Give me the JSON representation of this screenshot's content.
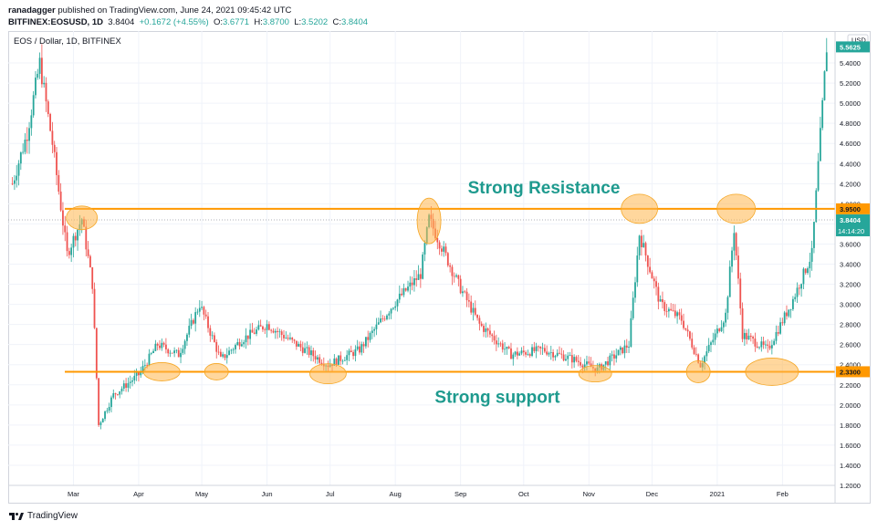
{
  "header": {
    "author": "ranadagger",
    "published_text": "published on TradingView.com, June 24, 2021 09:45:42 UTC",
    "symbol_line": "BITFINEX:EOSUSD, 1D",
    "last": "3.8404",
    "change": "+0.1672 (+4.55%)",
    "o_label": "O:",
    "o_value": "3.6771",
    "h_label": "H:",
    "h_value": "3.8700",
    "l_label": "L:",
    "l_value": "3.5202",
    "c_label": "C:",
    "c_value": "3.8404"
  },
  "chart_data": {
    "type": "candlestick",
    "title": "EOS / Dollar, 1D, BITFINEX",
    "currency": "USD",
    "x_ticks": [
      "Mar",
      "Apr",
      "May",
      "Jun",
      "Jul",
      "Aug",
      "Sep",
      "Oct",
      "Nov",
      "Dec",
      "2021",
      "Feb"
    ],
    "y_ticks": [
      "1.2000",
      "1.4000",
      "1.6000",
      "1.8000",
      "2.0000",
      "2.2000",
      "2.4000",
      "2.6000",
      "2.8000",
      "3.0000",
      "3.2000",
      "3.4000",
      "3.6000",
      "3.8000",
      "4.0000",
      "4.2000",
      "4.4000",
      "4.6000",
      "4.8000",
      "5.0000",
      "5.2000",
      "5.4000"
    ],
    "ylim": [
      1.2,
      5.6
    ],
    "close_path": [
      [
        "2020-02-01",
        4.2
      ],
      [
        "2020-02-08",
        4.7
      ],
      [
        "2020-02-14",
        5.4
      ],
      [
        "2020-02-20",
        4.6
      ],
      [
        "2020-02-27",
        3.5
      ],
      [
        "2020-03-05",
        3.85
      ],
      [
        "2020-03-10",
        3.2
      ],
      [
        "2020-03-13",
        1.8
      ],
      [
        "2020-03-20",
        2.1
      ],
      [
        "2020-04-01",
        2.3
      ],
      [
        "2020-04-10",
        2.6
      ],
      [
        "2020-04-20",
        2.5
      ],
      [
        "2020-04-30",
        3.0
      ],
      [
        "2020-05-10",
        2.45
      ],
      [
        "2020-05-20",
        2.65
      ],
      [
        "2020-06-01",
        2.8
      ],
      [
        "2020-06-15",
        2.6
      ],
      [
        "2020-06-30",
        2.4
      ],
      [
        "2020-07-15",
        2.55
      ],
      [
        "2020-07-31",
        3.0
      ],
      [
        "2020-08-13",
        3.3
      ],
      [
        "2020-08-17",
        3.85
      ],
      [
        "2020-08-31",
        3.2
      ],
      [
        "2020-09-10",
        2.8
      ],
      [
        "2020-09-25",
        2.5
      ],
      [
        "2020-10-10",
        2.55
      ],
      [
        "2020-10-25",
        2.45
      ],
      [
        "2020-11-05",
        2.35
      ],
      [
        "2020-11-20",
        2.6
      ],
      [
        "2020-11-25",
        3.7
      ],
      [
        "2020-12-05",
        3.0
      ],
      [
        "2020-12-15",
        2.85
      ],
      [
        "2020-12-24",
        2.4
      ],
      [
        "2021-01-05",
        2.9
      ],
      [
        "2021-01-09",
        3.75
      ],
      [
        "2021-01-13",
        2.7
      ],
      [
        "2021-01-25",
        2.55
      ],
      [
        "2021-02-05",
        3.0
      ],
      [
        "2021-02-15",
        3.5
      ],
      [
        "2021-02-22",
        5.56
      ]
    ],
    "levels": [
      {
        "label": "Strong Resistance",
        "value": 3.95,
        "price_tag": "3.9500",
        "color": "#ff9800"
      },
      {
        "label": "Strong support",
        "value": 2.33,
        "price_tag": "2.3300",
        "color": "#ff9800"
      }
    ],
    "last_price_tag": "5.5625",
    "last_price_value": 5.56,
    "ohlc_tag": "3.8404",
    "countdown_tag": "14:14:20",
    "ohlc_tag_value": 3.84,
    "highlighted_touches": [
      [
        "2020-03-05",
        3.86
      ],
      [
        "2020-04-12",
        2.33
      ],
      [
        "2020-05-08",
        2.33
      ],
      [
        "2020-06-30",
        2.31
      ],
      [
        "2020-08-17",
        3.83
      ],
      [
        "2020-11-04",
        2.31
      ],
      [
        "2020-11-25",
        3.95
      ],
      [
        "2020-12-23",
        2.33
      ],
      [
        "2021-01-10",
        3.95
      ],
      [
        "2021-01-27",
        2.33
      ]
    ],
    "colors": {
      "up": "#26a69a",
      "down": "#ef5350",
      "text_accent": "#1e9a8e",
      "ellipse": "#ffb74d"
    }
  },
  "footer": {
    "brand": "TradingView"
  }
}
